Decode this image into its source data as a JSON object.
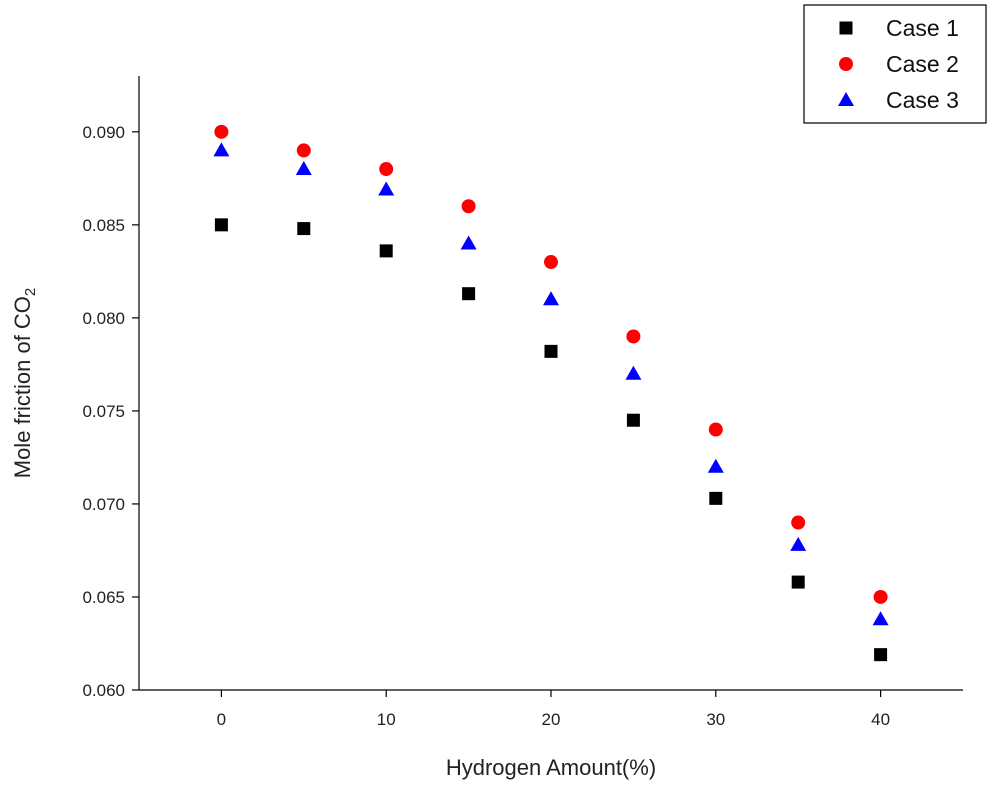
{
  "chart_data": {
    "type": "scatter",
    "xlabel": "Hydrogen Amount(%)",
    "ylabel_main": "Mole friction of CO",
    "ylabel_sub": "2",
    "xlim": [
      -5,
      45
    ],
    "ylim": [
      0.06,
      0.093
    ],
    "x_ticks": [
      0,
      10,
      20,
      30,
      40
    ],
    "x_tick_labels": [
      "0",
      "10",
      "20",
      "30",
      "40"
    ],
    "y_ticks": [
      0.06,
      0.065,
      0.07,
      0.075,
      0.08,
      0.085,
      0.09
    ],
    "y_tick_labels": [
      "0.060",
      "0.065",
      "0.070",
      "0.075",
      "0.080",
      "0.085",
      "0.090"
    ],
    "grid": false,
    "legend_position": "top-right",
    "x": [
      0,
      5,
      10,
      15,
      20,
      25,
      30,
      35,
      40
    ],
    "series": [
      {
        "name": "Case 1",
        "marker": "square",
        "color": "#000000",
        "values": [
          0.085,
          0.0848,
          0.0836,
          0.0813,
          0.0782,
          0.0745,
          0.0703,
          0.0658,
          0.0619
        ]
      },
      {
        "name": "Case 2",
        "marker": "circle",
        "color": "#ff0000",
        "values": [
          0.09,
          0.089,
          0.088,
          0.086,
          0.083,
          0.079,
          0.074,
          0.069,
          0.065
        ]
      },
      {
        "name": "Case 3",
        "marker": "triangle",
        "color": "#0000ff",
        "values": [
          0.089,
          0.088,
          0.0869,
          0.084,
          0.081,
          0.077,
          0.072,
          0.0678,
          0.0638
        ]
      }
    ]
  }
}
